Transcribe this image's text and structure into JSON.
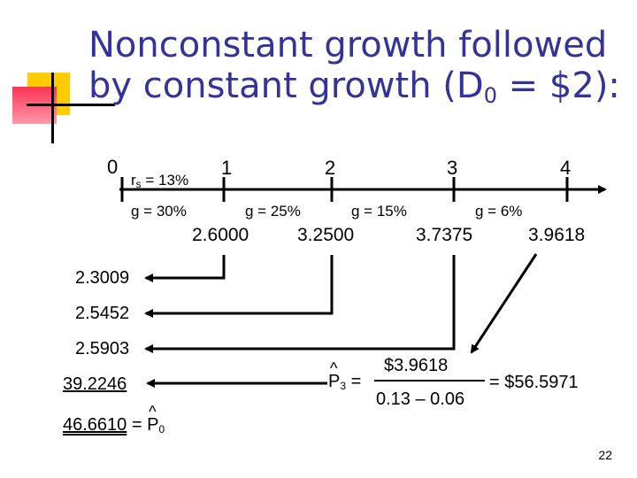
{
  "title": {
    "line1": "Nonconstant growth followed",
    "line2_prefix": "by constant growth (D",
    "line2_sub": "0",
    "line2_suffix": " = $2):"
  },
  "timeline": {
    "periods": [
      "0",
      "1",
      "2",
      "3",
      "4"
    ],
    "rs_prefix": "r",
    "rs_sub": "s",
    "rs_value": " = 13%",
    "growth": [
      "g = 30%",
      "g = 25%",
      "g = 15%",
      "g = 6%"
    ],
    "dividends": [
      "2.6000",
      "3.2500",
      "3.7375",
      "3.9618"
    ]
  },
  "present_values": [
    "2.3009",
    "2.5452",
    "2.5903",
    "39.2246"
  ],
  "total": {
    "value": "46.6610",
    "equals": "=",
    "p_label": "P",
    "p_sub": "0"
  },
  "terminal": {
    "p_label": "P",
    "p_sub": "3",
    "equals": "=",
    "numerator": "$3.9618",
    "denominator": "0.13 – 0.06",
    "result": "= $56.5971"
  },
  "page_number": "22",
  "colors": {
    "title": "#333399",
    "deco_yellow": "#ffcc00",
    "deco_red": "#ff3355"
  }
}
